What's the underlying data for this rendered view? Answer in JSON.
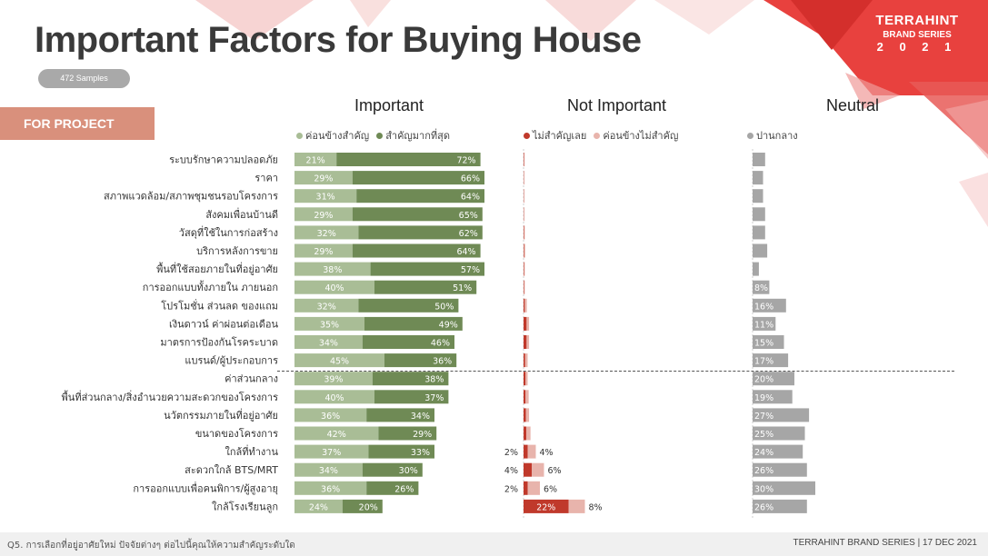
{
  "header": {
    "title": "Important Factors for Buying House",
    "samples": "472 Samples",
    "brand_line1": "TERRAHINT",
    "brand_line2": "BRAND SERIES",
    "brand_line3": "2 0 2 1",
    "section_tag": "FOR PROJECT"
  },
  "groups": {
    "important": "Important",
    "not_important": "Not Important",
    "neutral": "Neutral"
  },
  "legend": {
    "somewhat_important": "ค่อนข้างสำคัญ",
    "most_important": "สำคัญมากที่สุด",
    "not_important_at_all": "ไม่สำคัญเลย",
    "somewhat_not_important": "ค่อนข้างไม่สำคัญ",
    "neutral": "ปานกลาง"
  },
  "footer": {
    "question": "Q5. การเลือกที่อยู่อาศัยใหม่ ปัจจัยต่างๆ ต่อไปนี้คุณให้ความสำคัญระดับใด",
    "credit": "TERRAHINT BRAND SERIES | 17 DEC 2021"
  },
  "colors": {
    "somewhat_important": "#a9bd96",
    "most_important": "#6f8a55",
    "not_important_at_all": "#c0392b",
    "somewhat_not_important": "#e8b4ac",
    "neutral": "#a6a6a6",
    "section_tag": "#d9907c",
    "accent_red": "#e23a3a"
  },
  "chart_data": {
    "type": "bar",
    "stacked": true,
    "categories": [
      "ระบบรักษาความปลอดภัย",
      "ราคา",
      "สภาพแวดล้อม/สภาพชุมชนรอบโครงการ",
      "สังคมเพื่อนบ้านดี",
      "วัสดุที่ใช้ในการก่อสร้าง",
      "บริการหลังการขาย",
      "พื้นที่ใช้สอยภายในที่อยู่อาศัย",
      "การออกแบบทั้งภายใน ภายนอก",
      "โปรโมชั่น ส่วนลด ของแถม",
      "เงินดาวน์ ค่าผ่อนต่อเดือน",
      "มาตรการป้องกันโรคระบาด",
      "แบรนด์/ผู้ประกอบการ",
      "ค่าส่วนกลาง",
      "พื้นที่ส่วนกลาง/สิ่งอำนวยความสะดวกของโครงการ",
      "นวัตกรรมภายในที่อยู่อาศัย",
      "ขนาดของโครงการ",
      "ใกล้ที่ทำงาน",
      "สะดวกใกล้ BTS/MRT",
      "การออกแบบเพื่อคนพิการ/ผู้สูงอายุ",
      "ใกล้โรงเรียนลูก"
    ],
    "series": [
      {
        "name": "ค่อนข้างสำคัญ",
        "group": "Important",
        "values": [
          21,
          29,
          31,
          29,
          32,
          29,
          38,
          40,
          32,
          35,
          34,
          45,
          39,
          40,
          36,
          42,
          37,
          34,
          36,
          24
        ]
      },
      {
        "name": "สำคัญมากที่สุด",
        "group": "Important",
        "values": [
          72,
          66,
          64,
          65,
          62,
          64,
          57,
          51,
          50,
          49,
          46,
          36,
          38,
          37,
          34,
          29,
          33,
          30,
          26,
          20
        ]
      },
      {
        "name": "ไม่สำคัญเลย",
        "group": "Not Important",
        "values": [
          0.3,
          0.2,
          0.2,
          0.2,
          0.3,
          0.3,
          0.3,
          0.3,
          0.6,
          1.5,
          1.5,
          0.8,
          1.0,
          1.0,
          1.2,
          1.4,
          2,
          4,
          2,
          22
        ]
      },
      {
        "name": "ค่อนข้างไม่สำคัญ",
        "group": "Not Important",
        "values": [
          0,
          0,
          0,
          0,
          0.3,
          0.5,
          0.3,
          0.3,
          1,
          1.2,
          1.2,
          1.2,
          1.0,
          1.5,
          1.5,
          2,
          4,
          6,
          6,
          8
        ]
      },
      {
        "name": "ปานกลาง",
        "group": "Neutral",
        "values": [
          6,
          5,
          5,
          6,
          6,
          7,
          3,
          8,
          16,
          11,
          15,
          17,
          20,
          19,
          27,
          25,
          24,
          26,
          30,
          26
        ]
      }
    ],
    "important_labels": [
      [
        "21%",
        "72%"
      ],
      [
        "29%",
        "66%"
      ],
      [
        "31%",
        "64%"
      ],
      [
        "29%",
        "65%"
      ],
      [
        "32%",
        "62%"
      ],
      [
        "29%",
        "64%"
      ],
      [
        "38%",
        "57%"
      ],
      [
        "40%",
        "51%"
      ],
      [
        "32%",
        "50%"
      ],
      [
        "35%",
        "49%"
      ],
      [
        "34%",
        "46%"
      ],
      [
        "45%",
        "36%"
      ],
      [
        "39%",
        "38%"
      ],
      [
        "40%",
        "37%"
      ],
      [
        "36%",
        "34%"
      ],
      [
        "42%",
        "29%"
      ],
      [
        "37%",
        "33%"
      ],
      [
        "34%",
        "30%"
      ],
      [
        "36%",
        "26%"
      ],
      [
        "24%",
        "20%"
      ]
    ],
    "not_important_labels": {
      "16": [
        "2%",
        "4%"
      ],
      "17": [
        "4%",
        "6%"
      ],
      "18": [
        "2%",
        "6%"
      ],
      "19": [
        "22%",
        "8%"
      ]
    },
    "neutral_labels": {
      "7": "8%",
      "8": "16%",
      "9": "11%",
      "10": "15%",
      "11": "17%",
      "12": "20%",
      "13": "19%",
      "14": "27%",
      "15": "25%",
      "16": "24%",
      "17": "26%",
      "18": "30%",
      "19": "26%"
    },
    "xlim": [
      0,
      100
    ],
    "grid": false,
    "legend_position": "top"
  }
}
